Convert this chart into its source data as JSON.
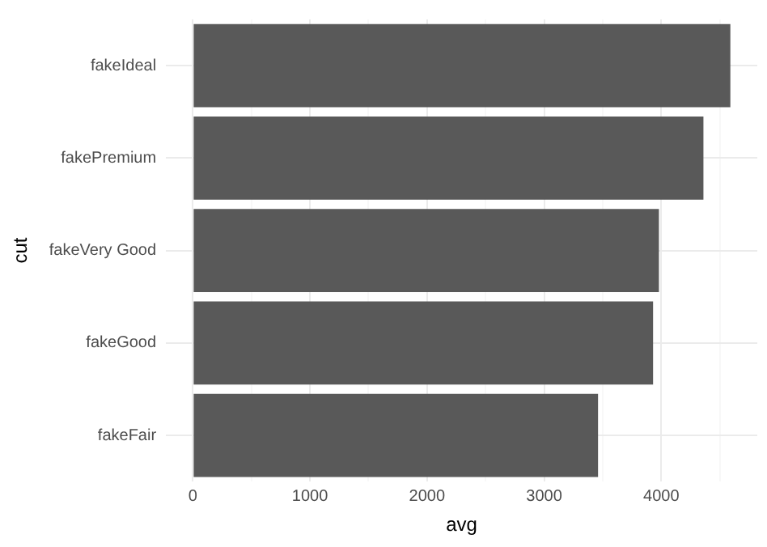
{
  "chart_data": {
    "type": "bar",
    "orientation": "horizontal",
    "xlabel": "avg",
    "ylabel": "cut",
    "categories": [
      "fakeIdeal",
      "fakePremium",
      "fakeVery Good",
      "fakeGood",
      "fakeFair"
    ],
    "values": [
      4590,
      4360,
      3980,
      3930,
      3460
    ],
    "color": "#595959",
    "xlim": [
      -230,
      4820
    ],
    "xticks": [
      0,
      {
        "value": 500,
        "label": null
      },
      1000,
      {
        "value": 1500,
        "label": null
      },
      2000,
      {
        "value": 2500,
        "label": null
      },
      3000,
      {
        "value": 3500,
        "label": null
      },
      4000,
      {
        "value": 4500,
        "label": null
      }
    ],
    "grid": true,
    "legend": false
  }
}
